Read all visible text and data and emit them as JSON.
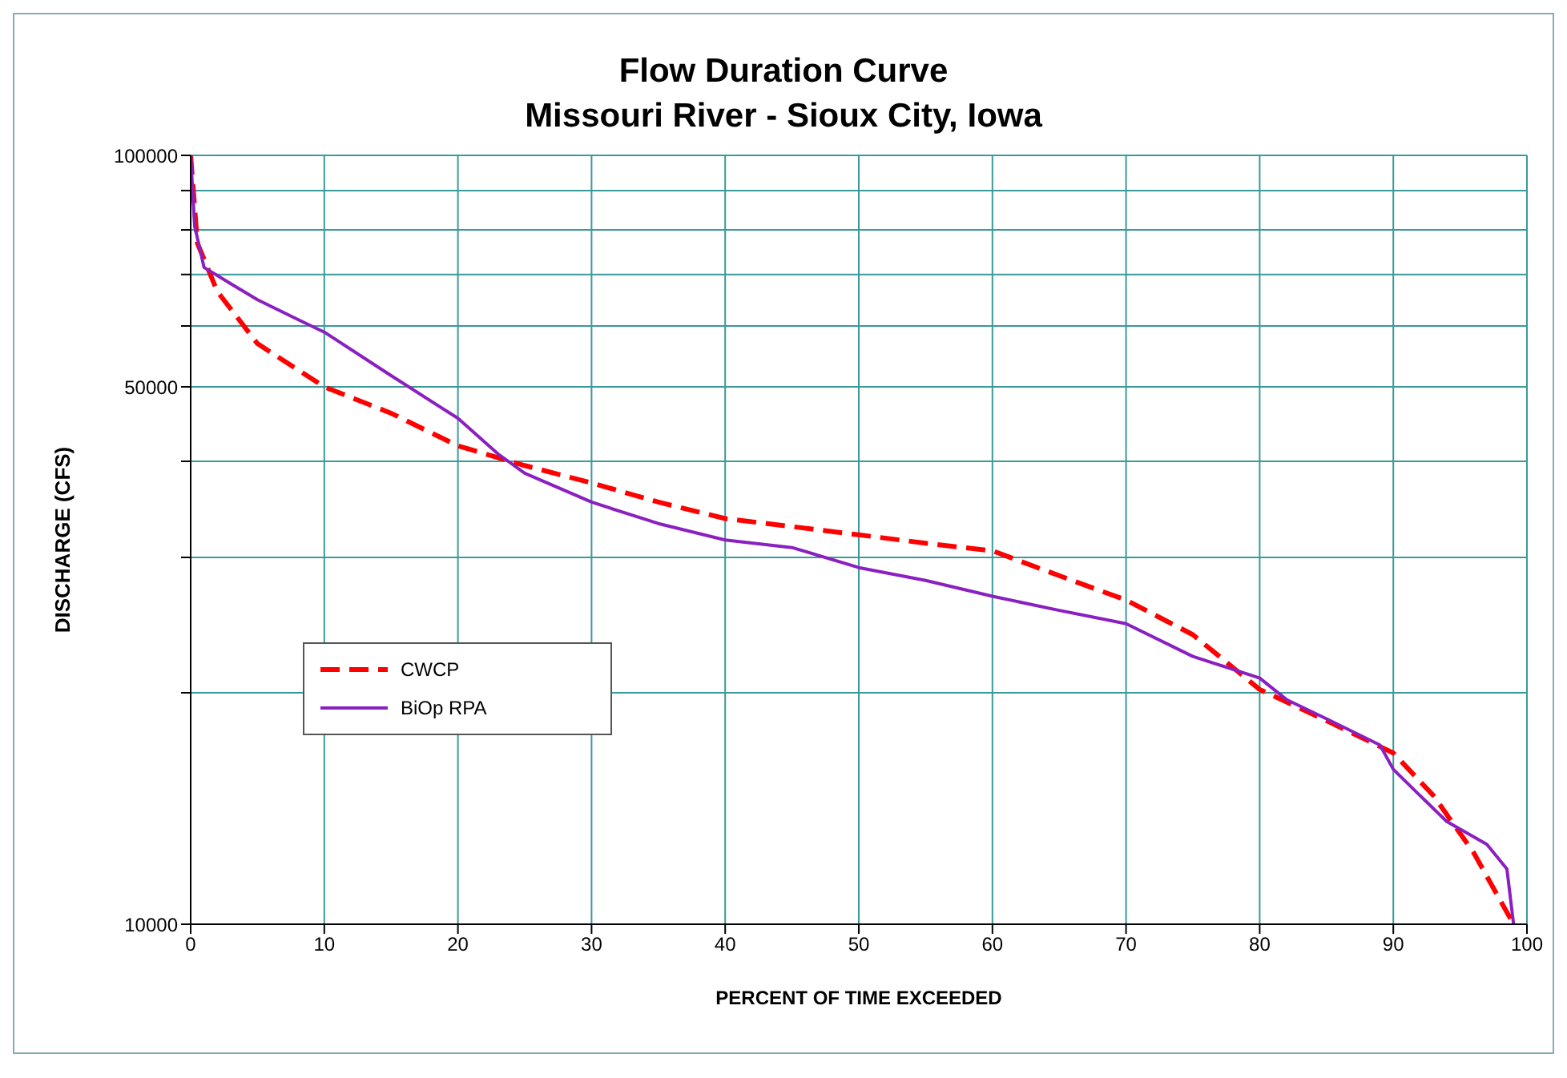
{
  "chart_data": {
    "type": "line",
    "title": "Flow Duration Curve",
    "subtitle": "Missouri River - Sioux City, Iowa",
    "xlabel": "PERCENT OF TIME EXCEEDED",
    "ylabel": "DISCHARGE (CFS)",
    "log": "y",
    "grid": true,
    "legend": "left",
    "marker": "none",
    "xlim": [
      0,
      100
    ],
    "xticks": [
      0,
      10,
      20,
      30,
      40,
      50,
      60,
      70,
      80,
      90,
      100
    ],
    "ylim": [
      10000,
      100000
    ],
    "yticks": [
      10000,
      {
        "value": 20000,
        "label": null
      },
      {
        "value": 30000,
        "label": null
      },
      {
        "value": 40000,
        "label": null
      },
      50000,
      {
        "value": 60000,
        "label": null
      },
      {
        "value": 70000,
        "label": null
      },
      {
        "value": 80000,
        "label": null
      },
      {
        "value": 90000,
        "label": null
      },
      100000
    ],
    "series": [
      {
        "name": "CWCP",
        "color": "#ff0000",
        "line_style": "dashed",
        "x": [
          0,
          0.5,
          2,
          5,
          10,
          15,
          20,
          25,
          30,
          35,
          40,
          45,
          50,
          55,
          60,
          65,
          70,
          75,
          80,
          85,
          90,
          93,
          96,
          99
        ],
        "values": [
          100000,
          76900,
          66500,
          56900,
          50000,
          46200,
          41900,
          39500,
          37500,
          35400,
          33700,
          32900,
          32100,
          31300,
          30600,
          28400,
          26400,
          23800,
          20200,
          18400,
          16700,
          14700,
          12400,
          10000
        ]
      },
      {
        "name": "BiOp RPA",
        "color": "#8b20c0",
        "line_style": "solid",
        "x": [
          0,
          0.3,
          1,
          3,
          5,
          8,
          10,
          15,
          20,
          23,
          25,
          30,
          35,
          40,
          45,
          50,
          55,
          60,
          65,
          70,
          75,
          80,
          82,
          85,
          89,
          90,
          92,
          94,
          97,
          98.5,
          99
        ],
        "values": [
          100000,
          80900,
          71500,
          68100,
          64900,
          61200,
          58900,
          51700,
          45500,
          40900,
          38600,
          35400,
          33200,
          31600,
          30900,
          29100,
          28000,
          26700,
          25600,
          24600,
          22300,
          20900,
          19600,
          18500,
          17100,
          15900,
          14700,
          13600,
          12700,
          11800,
          10000
        ]
      }
    ]
  }
}
